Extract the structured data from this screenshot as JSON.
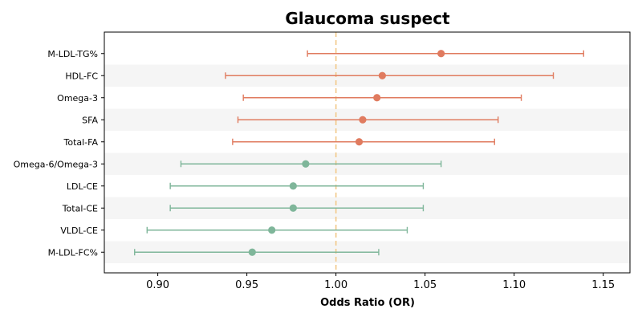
{
  "chart_data": {
    "type": "forest",
    "title": "Glaucoma suspect",
    "xlabel": "Odds Ratio (OR)",
    "ylabel": "",
    "xlim": [
      0.87,
      1.165
    ],
    "xticks": [
      0.9,
      0.95,
      1.0,
      1.05,
      1.1,
      1.15
    ],
    "xtick_labels": [
      "0.90",
      "0.95",
      "1.00",
      "1.05",
      "1.10",
      "1.15"
    ],
    "reference_line": 1.0,
    "grid": false,
    "colors": {
      "positive": "#E07B5F",
      "negative": "#7FB69A",
      "reference": "#F2C98A",
      "band": "#F5F5F5"
    },
    "items": [
      {
        "label": "M-LDL-TG%",
        "or": 1.059,
        "lower": 0.984,
        "upper": 1.139
      },
      {
        "label": "HDL-FC",
        "or": 1.026,
        "lower": 0.938,
        "upper": 1.122
      },
      {
        "label": "Omega-3",
        "or": 1.023,
        "lower": 0.948,
        "upper": 1.104
      },
      {
        "label": "SFA",
        "or": 1.015,
        "lower": 0.945,
        "upper": 1.091
      },
      {
        "label": "Total-FA",
        "or": 1.013,
        "lower": 0.942,
        "upper": 1.089
      },
      {
        "label": "Omega-6/Omega-3",
        "or": 0.983,
        "lower": 0.913,
        "upper": 1.059
      },
      {
        "label": "LDL-CE",
        "or": 0.976,
        "lower": 0.907,
        "upper": 1.049
      },
      {
        "label": "Total-CE",
        "or": 0.976,
        "lower": 0.907,
        "upper": 1.049
      },
      {
        "label": "VLDL-CE",
        "or": 0.964,
        "lower": 0.894,
        "upper": 1.04
      },
      {
        "label": "M-LDL-FC%",
        "or": 0.953,
        "lower": 0.887,
        "upper": 1.024
      }
    ]
  }
}
